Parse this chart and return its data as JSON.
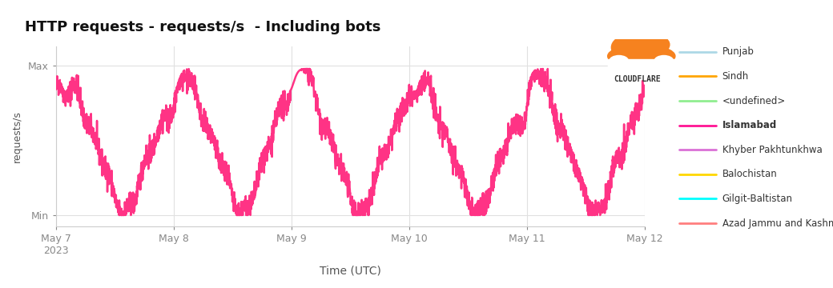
{
  "title": "HTTP requests - requests/s  - Including bots",
  "xlabel": "Time (UTC)",
  "ylabel": "requests/s",
  "ytick_labels": [
    "Min",
    "Max"
  ],
  "xtick_labels": [
    "May 7\n2023",
    "May 8",
    "May 9",
    "May 10",
    "May 11",
    "May 12"
  ],
  "line_color": "#FF3385",
  "line_width": 1.8,
  "background_color": "#ffffff",
  "grid_color": "#e0e0e0",
  "legend_entries": [
    {
      "label": "Punjab",
      "color": "#add8e6",
      "bold": false
    },
    {
      "label": "Sindh",
      "color": "#FFA500",
      "bold": false
    },
    {
      "label": "<undefined>",
      "color": "#90ee90",
      "bold": false
    },
    {
      "label": "Islamabad",
      "color": "#FF1493",
      "bold": true
    },
    {
      "label": "Khyber Pakhtunkhwa",
      "color": "#DA70D6",
      "bold": false
    },
    {
      "label": "Balochistan",
      "color": "#FFD700",
      "bold": false
    },
    {
      "label": "Gilgit-Baltistan",
      "color": "#00FFFF",
      "bold": false
    },
    {
      "label": "Azad Jammu and Kashmir",
      "color": "#FF7F7F",
      "bold": false
    }
  ],
  "cloudflare_logo_text": "CLOUDFLARE",
  "ylim": [
    0,
    1
  ],
  "xlim": [
    0,
    5
  ]
}
